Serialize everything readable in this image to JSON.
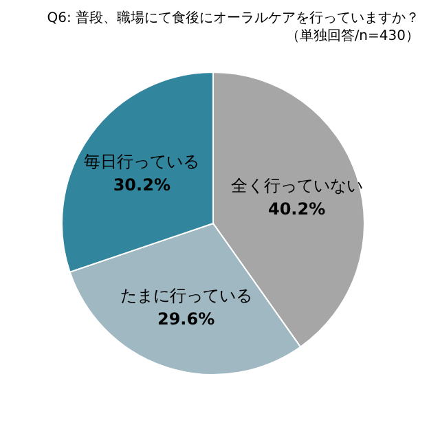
{
  "chart_data": {
    "type": "pie",
    "title": "Q6: 普段、職場にて食後にオーラルケアを行っていますか？",
    "subtitle": "（単独回答/n=430）",
    "categories": [
      "全く行っていない",
      "たまに行っている",
      "毎日行っている"
    ],
    "values": [
      40.2,
      29.6,
      30.2
    ],
    "colors": [
      "#a6a6a6",
      "#9fb8c2",
      "#31859c"
    ],
    "value_labels": [
      "40.2%",
      "29.6%",
      "30.2%"
    ],
    "legend": false
  }
}
